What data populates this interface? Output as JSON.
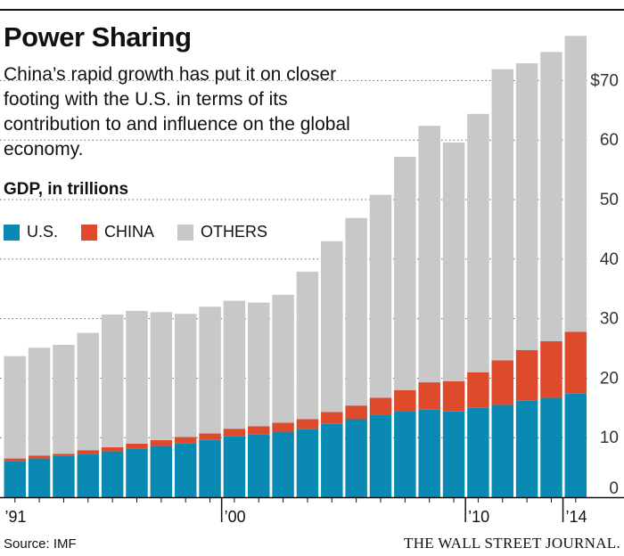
{
  "header": {
    "title": "Power Sharing",
    "subtitle": "China’s rapid growth has put it on closer footing with the U.S. in terms of its contribution to and influence on the global economy.",
    "axis_label": "GDP, in trillions"
  },
  "legend": [
    {
      "label": "U.S.",
      "color": "#0a8ab3"
    },
    {
      "label": "CHINA",
      "color": "#de4a2c"
    },
    {
      "label": "OTHERS",
      "color": "#c8c8c8"
    }
  ],
  "footer": {
    "source": "Source: IMF",
    "brand": "THE WALL STREET JOURNAL."
  },
  "chart_data": {
    "type": "bar",
    "stacked": true,
    "years": [
      1991,
      1992,
      1993,
      1994,
      1995,
      1996,
      1997,
      1998,
      1999,
      2000,
      2001,
      2002,
      2003,
      2004,
      2005,
      2006,
      2007,
      2008,
      2009,
      2010,
      2011,
      2012,
      2013,
      2014
    ],
    "x_tick_labels": [
      {
        "year": 1991,
        "label": "’91"
      },
      {
        "year": 2000,
        "label": "’00"
      },
      {
        "year": 2010,
        "label": "’10"
      },
      {
        "year": 2014,
        "label": "’14"
      }
    ],
    "series": [
      {
        "name": "U.S.",
        "color": "#0a8ab3",
        "values": [
          6.1,
          6.5,
          6.9,
          7.3,
          7.7,
          8.1,
          8.6,
          9.1,
          9.6,
          10.3,
          10.6,
          11.0,
          11.5,
          12.3,
          13.1,
          13.9,
          14.5,
          14.7,
          14.4,
          15.0,
          15.5,
          16.2,
          16.7,
          17.4
        ]
      },
      {
        "name": "CHINA",
        "color": "#de4a2c",
        "values": [
          0.4,
          0.5,
          0.4,
          0.6,
          0.7,
          0.9,
          1.0,
          1.0,
          1.1,
          1.2,
          1.3,
          1.5,
          1.6,
          2.0,
          2.3,
          2.8,
          3.5,
          4.6,
          5.1,
          6.0,
          7.5,
          8.5,
          9.5,
          10.4
        ]
      },
      {
        "name": "OTHERS",
        "color": "#c8c8c8",
        "values": [
          17.2,
          18.1,
          18.3,
          19.7,
          22.3,
          22.3,
          21.5,
          20.7,
          21.3,
          21.5,
          20.8,
          21.5,
          24.8,
          28.7,
          31.5,
          34.1,
          39.2,
          43.1,
          40.1,
          43.4,
          48.9,
          48.2,
          48.6,
          49.7
        ]
      }
    ],
    "y_ticks": [
      {
        "value": 0,
        "label": "0"
      },
      {
        "value": 10,
        "label": "10"
      },
      {
        "value": 20,
        "label": "20"
      },
      {
        "value": 30,
        "label": "30"
      },
      {
        "value": 40,
        "label": "40"
      },
      {
        "value": 50,
        "label": "50"
      },
      {
        "value": 60,
        "label": "60"
      },
      {
        "value": 70,
        "label": "$70"
      }
    ],
    "ylim": [
      0,
      80
    ],
    "grid": true,
    "y_axis_side": "right",
    "legend_position": "top-left"
  }
}
